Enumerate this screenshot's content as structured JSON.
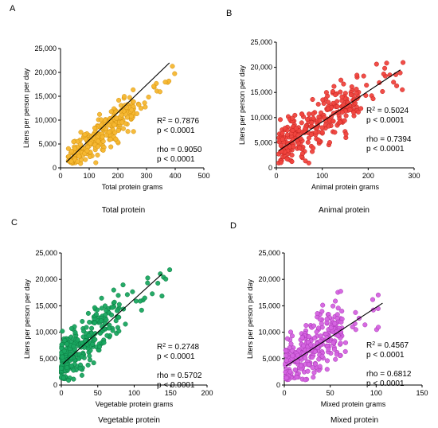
{
  "chart_data": [
    {
      "type": "scatter",
      "panel": "A",
      "caption": "Total protein",
      "xlabel": "Total protein grams",
      "ylabel": "Liters per person per day",
      "xlim": [
        0,
        500
      ],
      "ylim": [
        0,
        25000
      ],
      "xticks": [
        "0",
        "100",
        "200",
        "300",
        "400",
        "500"
      ],
      "yticks": [
        "0",
        "5,000",
        "10,000",
        "15,000",
        "20,000",
        "25,000"
      ],
      "color": "#f5b731",
      "edge": "#d4930f",
      "fit": [
        [
          20,
          1200
        ],
        [
          380,
          22000
        ]
      ],
      "stats": {
        "r2_label": "R",
        "r2_sup": "2",
        "r2_value": " = 0.7876",
        "p1": "p < 0.0001",
        "rho": "rho = 0.9050",
        "p2": "p < 0.0001"
      }
    },
    {
      "type": "scatter",
      "panel": "B",
      "caption": "Animal protein",
      "xlabel": "Animal protein grams",
      "ylabel": "Liters per person per day",
      "xlim": [
        0,
        300
      ],
      "ylim": [
        0,
        25000
      ],
      "xticks": [
        "0",
        "100",
        "200",
        "300"
      ],
      "yticks": [
        "0",
        "5,000",
        "10,000",
        "15,000",
        "20,000",
        "25,000"
      ],
      "color": "#f0443e",
      "edge": "#c42420",
      "fit": [
        [
          5,
          3400
        ],
        [
          270,
          19500
        ]
      ],
      "stats": {
        "r2_label": "R",
        "r2_sup": "2",
        "r2_value": " = 0.5024",
        "p1": "p < 0.0001",
        "rho": "rho = 0.7394",
        "p2": "p < 0.0001"
      }
    },
    {
      "type": "scatter",
      "panel": "C",
      "caption": "Vegetable protein",
      "xlabel": "Vegetable protein grams",
      "ylabel": "Liters per person per day",
      "xlim": [
        0,
        200
      ],
      "ylim": [
        0,
        25000
      ],
      "xticks": [
        "0",
        "50",
        "100",
        "150",
        "200"
      ],
      "yticks": [
        "0",
        "5,000",
        "10,000",
        "15,000",
        "20,000",
        "25,000"
      ],
      "color": "#1aa660",
      "edge": "#0b7a42",
      "fit": [
        [
          2,
          4000
        ],
        [
          138,
          21000
        ]
      ],
      "stats": {
        "r2_label": "R",
        "r2_sup": "2",
        "r2_value": " = 0.2748",
        "p1": "p < 0.0001",
        "rho": "rho = 0.5702",
        "p2": "p < 0.0001"
      }
    },
    {
      "type": "scatter",
      "panel": "D",
      "caption": "Mixed protein",
      "xlabel": "Mixed protein grams",
      "ylabel": "Liters per person per day",
      "xlim": [
        0,
        150
      ],
      "ylim": [
        0,
        25000
      ],
      "xticks": [
        "0",
        "50",
        "100",
        "150"
      ],
      "yticks": [
        "0",
        "5,000",
        "10,000",
        "15,000",
        "20,000",
        "25,000"
      ],
      "color": "#d563e0",
      "edge": "#a835b5",
      "fit": [
        [
          2,
          3600
        ],
        [
          107,
          15500
        ]
      ],
      "stats": {
        "r2_label": "R",
        "r2_sup": "2",
        "r2_value": " = 0.4567",
        "p1": "p < 0.0001",
        "rho": "rho = 0.6812",
        "p2": "p < 0.0001"
      }
    }
  ]
}
